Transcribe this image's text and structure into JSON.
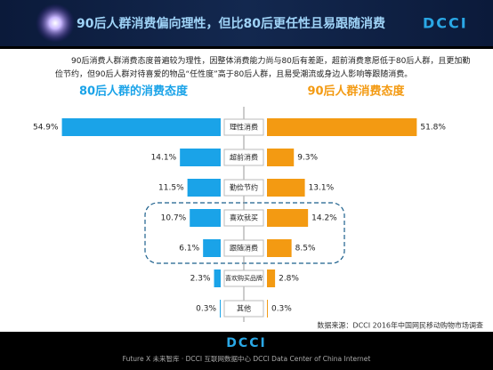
{
  "header": {
    "title": "90后人群消费偏向理性，但比80后更任性且易跟随消费",
    "logo": "DCCI"
  },
  "chart_data": {
    "type": "butterfly-bar",
    "description": "90后消费人群消费态度普遍较为理性，因整体消费能力尚与80后有差距，超前消费意愿低于80后人群，且更加勤俭节约，但90后人群对待喜爱的物品“任性度”高于80后人群，且易受潮流或身边人影响等跟随消费。",
    "categories": [
      "理性消费",
      "超前消费",
      "勤俭节约",
      "喜欢就买",
      "跟随消费",
      "喜欢购买品牌",
      "其他"
    ],
    "series": [
      {
        "name": "80后人群的消费态度",
        "color": "#1aa3e8",
        "values": [
          54.9,
          14.1,
          11.5,
          10.7,
          6.1,
          2.3,
          0.3
        ],
        "value_labels": [
          "54.9%",
          "14.1%",
          "11.5%",
          "10.7%",
          "6.1%",
          "2.3%",
          "0.3%"
        ]
      },
      {
        "name": "90后人群消费态度",
        "color": "#f39a12",
        "values": [
          51.8,
          9.3,
          13.1,
          14.2,
          8.5,
          2.8,
          0.3
        ],
        "value_labels": [
          "51.8%",
          "9.3%",
          "13.1%",
          "14.2%",
          "8.5%",
          "2.8%",
          "0.3%"
        ]
      }
    ],
    "source": "数据来源：DCCI 2016年中国网民移动购物市场调查"
  },
  "footer": {
    "logo": "DCCI",
    "text": "Future X 未来智库 · DCCI 互联网数据中心  DCCI Data Center of China Internet"
  }
}
